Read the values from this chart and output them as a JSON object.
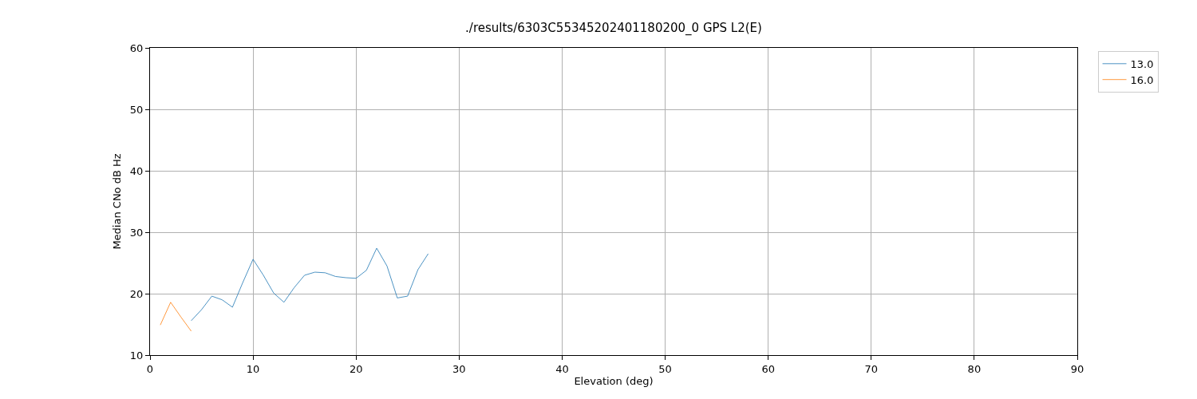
{
  "chart_data": {
    "type": "line",
    "title": "./results/6303C55345202401180200_0 GPS L2(E)",
    "xlabel": "Elevation (deg)",
    "ylabel": "Median CNo dB Hz",
    "xlim": [
      0,
      90
    ],
    "xticks": [
      0,
      10,
      20,
      30,
      40,
      50,
      60,
      70,
      80,
      90
    ],
    "ylim": [
      10,
      60
    ],
    "yticks": [
      10,
      20,
      30,
      40,
      50,
      60
    ],
    "grid": true,
    "legend": "top right",
    "line_style": "solid",
    "series": [
      {
        "name": "13.0",
        "color": "#1f77b4",
        "x": [
          4,
          5,
          6,
          7,
          8,
          9,
          10,
          11,
          12,
          13,
          14,
          15,
          16,
          17,
          18,
          19,
          20,
          21,
          22,
          23,
          24,
          25,
          26,
          27
        ],
        "values": [
          15.6,
          17.4,
          19.6,
          19.0,
          17.8,
          21.8,
          25.6,
          23.0,
          20.1,
          18.6,
          21.0,
          23.0,
          23.5,
          23.4,
          22.8,
          22.6,
          22.5,
          23.8,
          27.4,
          24.5,
          19.3,
          19.6,
          23.9,
          26.5
        ]
      },
      {
        "name": "16.0",
        "color": "#ff7f0e",
        "x": [
          1,
          2,
          3,
          4
        ],
        "values": [
          14.9,
          18.6,
          16.2,
          13.9
        ]
      }
    ]
  }
}
